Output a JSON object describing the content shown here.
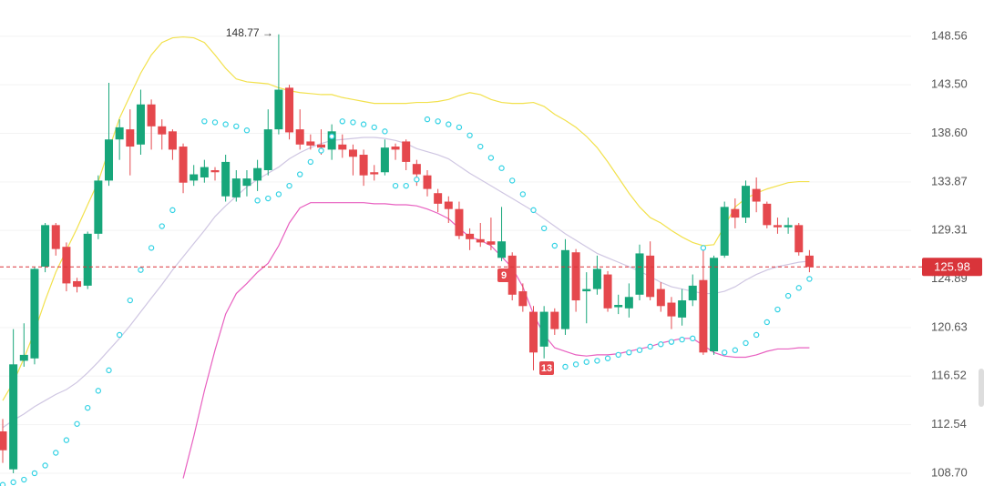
{
  "chart_data": {
    "type": "candlestick",
    "log_scale": true,
    "grid": true,
    "ylim": [
      107.71,
      152.47
    ],
    "yticks": [
      148.56,
      {
        "value": 143.5,
        "label": "143.50"
      },
      {
        "value": 138.6,
        "label": "138.60"
      },
      133.87,
      129.31,
      124.89,
      120.63,
      116.52,
      112.54,
      {
        "value": 108.7,
        "label": "108.70"
      }
    ],
    "up_color": "#17a67a",
    "down_color": "#e5484d",
    "open": [
      112,
      109,
      117.8,
      118,
      126,
      129.8,
      127.8,
      124.7,
      124.3,
      129,
      134,
      138,
      139,
      137.5,
      141.5,
      139.3,
      138.8,
      137.3,
      134,
      134.3,
      135,
      132.5,
      132.4,
      133.5,
      134,
      135,
      139,
      143.2,
      139,
      137.8,
      137.5,
      137,
      137.5,
      137,
      136.5,
      134.8,
      134.8,
      137.3,
      137.8,
      135.6,
      134.5,
      132.8,
      132,
      131.3,
      129,
      128.5,
      128.3,
      126.8,
      127,
      123.8,
      122,
      119,
      122,
      120.5,
      127.3,
      123.8,
      124,
      125.3,
      122.4,
      122.3,
      123.5,
      127,
      124,
      122.8,
      121.5,
      123,
      124.8,
      118.6,
      127,
      131.3,
      130.5,
      133.2,
      131.8,
      129.8,
      129.6,
      129.8,
      127
    ],
    "high": [
      113,
      120.5,
      121,
      126,
      130,
      130,
      128.2,
      125,
      129.2,
      134.5,
      143.7,
      140,
      141,
      143,
      142,
      140,
      139,
      137.6,
      135.5,
      136,
      135.3,
      136.5,
      135,
      135,
      136,
      141,
      148.77,
      143.5,
      141,
      138.5,
      139,
      139.5,
      138.5,
      137.5,
      137,
      135.5,
      138,
      137.6,
      138,
      136,
      135,
      133.2,
      132.5,
      132,
      129.5,
      130,
      130.5,
      131.5,
      127.3,
      124.5,
      122.5,
      122.5,
      122.3,
      128.5,
      127.6,
      125.5,
      127,
      125.6,
      123.5,
      124.5,
      128,
      128.3,
      124.6,
      123.3,
      124,
      125.3,
      127.5,
      127,
      132,
      132.3,
      134,
      134.3,
      132,
      130.5,
      130.5,
      130,
      127.5
    ],
    "low": [
      109.5,
      108.7,
      117.3,
      117.5,
      125.5,
      127,
      123.8,
      123.7,
      124,
      128.5,
      133.5,
      136,
      134.5,
      136.5,
      137,
      137,
      136,
      132.8,
      133.5,
      133.8,
      134,
      132,
      132,
      132.5,
      133,
      134.5,
      138.5,
      138,
      137,
      137,
      136.5,
      136,
      136.2,
      134.5,
      133.5,
      134,
      134.5,
      136,
      135,
      133.5,
      132.5,
      131,
      130,
      128.5,
      127.5,
      127.8,
      127.5,
      126.5,
      123,
      122,
      117,
      118,
      120,
      120,
      122,
      121,
      123.5,
      122,
      121.8,
      121.5,
      123,
      123,
      122,
      120.5,
      120.8,
      122.5,
      118.3,
      118.3,
      126.8,
      129.5,
      130,
      131,
      129.5,
      129,
      129,
      127,
      125.5
    ],
    "close": [
      110.5,
      117.5,
      118.3,
      125.8,
      129.8,
      127.6,
      124.5,
      124.2,
      129,
      134,
      138,
      139.2,
      137.3,
      141.5,
      139.3,
      138.5,
      137,
      133.8,
      134.6,
      135.3,
      134.8,
      135.8,
      134.2,
      134.2,
      135.2,
      139,
      143,
      138.7,
      137.5,
      137.4,
      137.2,
      138.8,
      137,
      136.3,
      134.5,
      134.6,
      137.2,
      137,
      135.8,
      134.6,
      133.2,
      131.8,
      131.3,
      128.8,
      128.5,
      128.2,
      128,
      128.3,
      123.5,
      122.5,
      118.5,
      122,
      120.5,
      127.5,
      123,
      124,
      125.8,
      122.3,
      122.6,
      123.3,
      127.2,
      123.3,
      122.5,
      121.6,
      123,
      124.3,
      118.5,
      126.8,
      131.5,
      130.5,
      133.5,
      132,
      129.8,
      129.6,
      129.8,
      127.3,
      125.98
    ],
    "lines": [
      {
        "color": "#f2e14c",
        "values": [
          114.5,
          116,
          118,
          120.3,
          123,
          125.5,
          127.5,
          129.5,
          131.7,
          133.9,
          137,
          140.1,
          142.4,
          144.7,
          146.6,
          147.9,
          148.4,
          148.5,
          148.4,
          147.9,
          146.6,
          145.2,
          144.1,
          143.8,
          143.7,
          143.6,
          143.2,
          142.9,
          142.7,
          142.6,
          142.5,
          142.5,
          142.2,
          142,
          141.8,
          141.6,
          141.6,
          141.6,
          141.6,
          141.7,
          141.7,
          141.8,
          142,
          142.4,
          142.7,
          142.5,
          142,
          141.7,
          141.6,
          141.6,
          141.7,
          141.3,
          140.5,
          139.9,
          139.2,
          138.3,
          137.2,
          135.8,
          134.3,
          132.8,
          131.5,
          130.5,
          130,
          129.3,
          128.7,
          128.2,
          127.9,
          128,
          129.7,
          131.5,
          132.3,
          132.8,
          133.2,
          133.5,
          133.8,
          133.9,
          133.9
        ]
      },
      {
        "color": "#cfc6e2",
        "values": [
          112.3,
          112.9,
          113.4,
          114,
          114.5,
          115,
          115.4,
          116,
          116.8,
          117.7,
          118.7,
          119.7,
          120.8,
          122,
          123.2,
          124.4,
          125.7,
          126.9,
          128.1,
          129.3,
          130.6,
          131.6,
          132.5,
          133.4,
          134.1,
          134.7,
          135.3,
          136.1,
          136.7,
          137.2,
          137.6,
          137.9,
          138,
          138.1,
          138.2,
          138.2,
          138.1,
          137.9,
          137.6,
          137.1,
          136.8,
          136.5,
          136.1,
          135.4,
          134.7,
          134.1,
          133.5,
          132.9,
          132.3,
          131.7,
          131.1,
          130.4,
          129.7,
          129,
          128.4,
          127.8,
          127.2,
          126.8,
          126.4,
          126,
          125.6,
          125.1,
          124.6,
          124.2,
          124,
          123.8,
          123.6,
          123.6,
          123.8,
          124.2,
          124.8,
          125.3,
          125.7,
          126,
          126.2,
          126.4,
          126.5
        ]
      },
      {
        "color": "#e860c0",
        "values": [
          null,
          null,
          null,
          null,
          null,
          null,
          null,
          null,
          null,
          null,
          null,
          null,
          null,
          null,
          null,
          null,
          null,
          108.3,
          111.6,
          115.3,
          118.7,
          121.8,
          123.6,
          124.5,
          125.5,
          126.3,
          127.9,
          130,
          131.4,
          131.9,
          131.9,
          131.9,
          131.9,
          131.9,
          131.9,
          131.8,
          131.8,
          131.7,
          131.7,
          131.6,
          131.3,
          130.9,
          130.4,
          129.5,
          128.7,
          128.4,
          127.9,
          126.9,
          125.9,
          124.2,
          121.8,
          120,
          118.9,
          118.6,
          118.3,
          118.2,
          118.3,
          118.3,
          118.4,
          118.6,
          118.8,
          119,
          119.3,
          119.5,
          119.7,
          119.7,
          119.1,
          118.5,
          118.2,
          118.1,
          118.1,
          118.3,
          118.6,
          118.8,
          118.8,
          118.9,
          118.9
        ]
      }
    ],
    "sar": {
      "color": "#33d2e4",
      "values": [
        107.8,
        108,
        108.2,
        108.7,
        109.3,
        110.3,
        111.3,
        112.6,
        113.9,
        115.3,
        117,
        120,
        123,
        125.7,
        127.7,
        129.7,
        131.2,
        null,
        null,
        139.8,
        139.7,
        139.5,
        139.3,
        138.9,
        132.1,
        132.3,
        132.7,
        133.5,
        134.6,
        135.8,
        136.9,
        138.3,
        139.8,
        139.7,
        139.5,
        139.2,
        138.8,
        133.5,
        133.5,
        134.1,
        140,
        139.8,
        139.5,
        139.2,
        138.4,
        137.3,
        136.2,
        135.2,
        134,
        132.7,
        131.2,
        129.5,
        127.9,
        117.3,
        117.5,
        117.7,
        117.8,
        118,
        118.3,
        118.5,
        118.7,
        119,
        119.2,
        119.4,
        119.6,
        119.7,
        127.7,
        null,
        118.5,
        118.7,
        119.3,
        120,
        121.1,
        122.2,
        123.4,
        124.1,
        124.9
      ]
    },
    "last_price": 125.98,
    "last_price_color": "#d9343a",
    "max_label": "148.77 →",
    "markers": [
      "9",
      "13"
    ]
  }
}
